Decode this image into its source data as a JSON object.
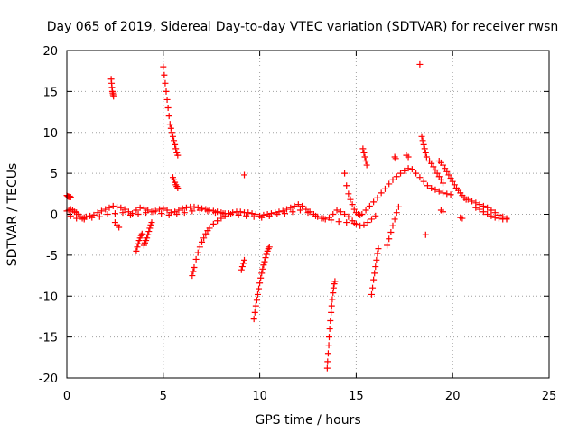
{
  "chart_data": {
    "type": "scatter",
    "title": "Day 065 of 2019, Sidereal Day-to-day VTEC variation (SDTVAR) for receiver rwsn",
    "xlabel": "GPS time / hours",
    "ylabel": "SDTVAR / TECUs",
    "xlim": [
      0,
      25
    ],
    "ylim": [
      -20,
      20
    ],
    "xticks": [
      "0",
      "5",
      "10",
      "15",
      "20",
      "25"
    ],
    "yticks": [
      "20",
      "15",
      "10",
      "5",
      "0",
      "-5",
      "-10",
      "-15",
      "-20"
    ],
    "grid": true,
    "marker": "+",
    "color": "#ff0000",
    "series": [
      {
        "name": "baseline",
        "x": [
          0.0,
          0.1,
          0.2,
          0.3,
          0.4,
          0.5,
          0.6,
          0.7,
          0.8,
          0.9,
          1.0,
          1.2,
          1.4,
          1.6,
          1.8,
          2.0,
          2.2,
          2.4,
          2.6,
          2.8,
          3.0,
          3.2,
          3.4,
          3.6,
          3.8,
          4.0,
          4.2,
          4.4,
          4.6,
          4.8,
          5.0,
          5.2,
          5.4,
          5.6,
          5.8,
          6.0,
          6.2,
          6.4,
          6.6,
          6.8,
          7.0,
          7.2,
          7.4,
          7.6,
          7.8,
          8.0,
          8.2,
          8.4,
          8.6,
          8.8,
          9.0,
          9.2,
          9.4,
          9.6,
          9.8,
          10.0,
          10.2,
          10.4,
          10.6,
          10.8,
          11.0,
          11.2,
          11.4,
          11.6,
          11.8,
          12.0,
          12.2,
          12.4,
          12.6,
          12.8,
          13.0,
          13.2,
          13.4,
          13.6,
          13.8,
          14.0,
          14.2,
          14.4,
          14.6,
          14.8,
          15.0,
          15.2,
          15.4,
          15.6,
          15.8,
          16.0
        ],
        "y": [
          0.4,
          0.5,
          0.6,
          0.5,
          0.3,
          0.2,
          0.0,
          -0.3,
          -0.5,
          -0.4,
          -0.3,
          -0.2,
          -0.1,
          0.2,
          0.4,
          0.6,
          0.8,
          1.0,
          0.9,
          0.8,
          0.6,
          0.3,
          0.1,
          0.5,
          0.8,
          0.7,
          0.5,
          0.3,
          0.4,
          0.6,
          0.7,
          0.5,
          0.2,
          0.3,
          0.5,
          0.7,
          0.8,
          0.9,
          0.9,
          0.8,
          0.7,
          0.6,
          0.5,
          0.4,
          0.3,
          0.2,
          0.1,
          0.1,
          0.2,
          0.3,
          0.3,
          0.2,
          0.2,
          0.1,
          0.0,
          -0.2,
          -0.1,
          0.0,
          0.1,
          0.2,
          0.3,
          0.4,
          0.6,
          0.8,
          1.0,
          1.2,
          1.0,
          0.6,
          0.3,
          0.0,
          -0.3,
          -0.5,
          -0.6,
          -0.4,
          0.0,
          0.5,
          0.3,
          0.0,
          -0.3,
          -0.8,
          -1.2,
          -1.4,
          -1.3,
          -1.0,
          -0.6,
          -0.2
        ]
      },
      {
        "name": "baseline-lower",
        "x": [
          0.2,
          0.5,
          0.9,
          1.3,
          1.7,
          2.1,
          2.5,
          2.9,
          3.3,
          3.7,
          4.1,
          4.5,
          4.9,
          5.3,
          5.7,
          6.1,
          6.5,
          6.9,
          7.3,
          7.7,
          8.1,
          8.5,
          8.9,
          9.3,
          9.7,
          10.1,
          10.5,
          10.9,
          11.3,
          11.7,
          12.1,
          12.5,
          12.9,
          13.3,
          13.7,
          14.1,
          14.5,
          14.9
        ],
        "y": [
          -0.2,
          -0.5,
          -0.6,
          -0.4,
          -0.3,
          0.0,
          0.1,
          0.2,
          -0.1,
          0.0,
          0.2,
          0.3,
          0.1,
          -0.1,
          0.0,
          0.2,
          0.4,
          0.5,
          0.4,
          0.2,
          0.1,
          0.0,
          -0.1,
          -0.2,
          -0.3,
          -0.4,
          -0.2,
          0.0,
          0.1,
          0.3,
          0.5,
          0.2,
          -0.2,
          -0.5,
          -0.7,
          -0.9,
          -1.0,
          -1.1
        ]
      },
      {
        "name": "arc-up-1",
        "x": [
          5.0,
          5.05,
          5.1,
          5.15,
          5.2,
          5.25,
          5.3,
          5.35,
          5.4,
          5.45,
          5.5,
          5.55,
          5.6,
          5.65,
          5.7,
          5.75
        ],
        "y": [
          18.0,
          17.0,
          16.0,
          15.0,
          14.0,
          13.0,
          12.0,
          11.0,
          10.5,
          10.0,
          9.5,
          9.0,
          8.5,
          8.0,
          7.5,
          7.2
        ]
      },
      {
        "name": "arc-up-2",
        "x": [
          5.5,
          5.55,
          5.6,
          5.65,
          5.7,
          5.75
        ],
        "y": [
          4.5,
          4.2,
          3.9,
          3.6,
          3.4,
          3.2
        ]
      },
      {
        "name": "spike-2.3",
        "x": [
          2.3,
          2.32,
          2.34,
          2.36,
          2.38,
          2.4,
          2.42
        ],
        "y": [
          16.5,
          16.0,
          15.5,
          15.0,
          14.8,
          14.6,
          14.4
        ]
      },
      {
        "name": "spike-2.6",
        "x": [
          2.5,
          2.6,
          2.7
        ],
        "y": [
          -1.0,
          -1.3,
          -1.6
        ]
      },
      {
        "name": "dip-3.7",
        "x": [
          3.6,
          3.65,
          3.7,
          3.75,
          3.8,
          3.85,
          3.9
        ],
        "y": [
          -4.5,
          -4.0,
          -3.6,
          -3.2,
          -2.9,
          -2.6,
          -2.4
        ]
      },
      {
        "name": "dip-4.1",
        "x": [
          4.0,
          4.05,
          4.1,
          4.15,
          4.2,
          4.25,
          4.3,
          4.35,
          4.4
        ],
        "y": [
          -3.8,
          -3.5,
          -3.2,
          -2.9,
          -2.5,
          -2.1,
          -1.7,
          -1.3,
          -1.0
        ]
      },
      {
        "name": "curve-6.5",
        "x": [
          6.5,
          6.55,
          6.6,
          6.7,
          6.8,
          6.9,
          7.0,
          7.1,
          7.2,
          7.3,
          7.4,
          7.6,
          7.8,
          8.0,
          8.2
        ],
        "y": [
          -7.5,
          -7.0,
          -6.5,
          -5.5,
          -4.7,
          -4.0,
          -3.4,
          -2.9,
          -2.4,
          -2.0,
          -1.7,
          -1.2,
          -0.8,
          -0.5,
          -0.2
        ]
      },
      {
        "name": "point-9.2",
        "x": [
          9.2
        ],
        "y": [
          4.8
        ]
      },
      {
        "name": "cluster-9.1",
        "x": [
          9.05,
          9.1,
          9.15,
          9.2
        ],
        "y": [
          -6.8,
          -6.4,
          -6.0,
          -5.6
        ]
      },
      {
        "name": "curve-9.8",
        "x": [
          9.7,
          9.75,
          9.8,
          9.85,
          9.9,
          9.95,
          10.0,
          10.05,
          10.1,
          10.15,
          10.2,
          10.25,
          10.3,
          10.35,
          10.4,
          10.45,
          10.5
        ],
        "y": [
          -12.8,
          -12.0,
          -11.2,
          -10.5,
          -9.8,
          -9.1,
          -8.4,
          -7.8,
          -7.2,
          -6.7,
          -6.2,
          -5.8,
          -5.3,
          -4.9,
          -4.5,
          -4.2,
          -4.0
        ]
      },
      {
        "name": "curve-13.5",
        "x": [
          13.5,
          13.52,
          13.55,
          13.58,
          13.6,
          13.63,
          13.66,
          13.7,
          13.73,
          13.76,
          13.8,
          13.83,
          13.86,
          13.9
        ],
        "y": [
          -18.8,
          -18.0,
          -17.0,
          -16.0,
          -15.0,
          -14.0,
          -13.0,
          -12.0,
          -11.2,
          -10.4,
          -9.6,
          -9.0,
          -8.5,
          -8.2
        ]
      },
      {
        "name": "rise-14.5",
        "x": [
          14.4,
          14.5,
          14.6,
          14.7,
          14.8,
          14.9,
          15.0,
          15.1,
          15.2
        ],
        "y": [
          5.0,
          3.5,
          2.5,
          1.8,
          1.2,
          0.6,
          0.2,
          0.0,
          -0.1
        ]
      },
      {
        "name": "spike-15.5",
        "x": [
          15.35,
          15.4,
          15.45,
          15.5,
          15.55
        ],
        "y": [
          8.0,
          7.5,
          7.0,
          6.5,
          6.0
        ]
      },
      {
        "name": "dip-15.8",
        "x": [
          15.8,
          15.85,
          15.9,
          15.95,
          16.0,
          16.05,
          16.1,
          16.15
        ],
        "y": [
          -9.8,
          -9.0,
          -8.0,
          -7.2,
          -6.4,
          -5.6,
          -4.8,
          -4.2
        ]
      },
      {
        "name": "dip-16.8",
        "x": [
          16.6,
          16.7,
          16.8,
          16.9,
          17.0,
          17.1,
          17.2
        ],
        "y": [
          -3.8,
          -3.0,
          -2.2,
          -1.4,
          -0.6,
          0.2,
          0.9
        ]
      },
      {
        "name": "rise-16",
        "x": [
          15.3,
          15.5,
          15.7,
          15.9,
          16.1,
          16.3,
          16.5,
          16.7,
          16.9,
          17.1,
          17.3,
          17.5,
          17.7,
          17.9,
          18.1,
          18.3,
          18.5,
          18.7,
          18.9,
          19.1,
          19.3,
          19.5,
          19.7,
          19.9
        ],
        "y": [
          0.0,
          0.5,
          1.0,
          1.5,
          2.0,
          2.6,
          3.1,
          3.7,
          4.2,
          4.6,
          5.0,
          5.3,
          5.6,
          5.5,
          5.0,
          4.5,
          4.0,
          3.5,
          3.2,
          3.0,
          2.8,
          2.6,
          2.5,
          2.4
        ]
      },
      {
        "name": "point-17",
        "x": [
          17.0,
          17.05
        ],
        "y": [
          7.0,
          6.8
        ]
      },
      {
        "name": "point-18.3",
        "x": [
          18.3
        ],
        "y": [
          18.3
        ]
      },
      {
        "name": "spike-18.5",
        "x": [
          18.4,
          18.45,
          18.5,
          18.55,
          18.6,
          18.65
        ],
        "y": [
          9.5,
          9.0,
          8.5,
          8.0,
          7.5,
          7.0
        ]
      },
      {
        "name": "point-18.6",
        "x": [
          18.6
        ],
        "y": [
          -2.5
        ]
      },
      {
        "name": "point-18",
        "x": [
          17.6,
          17.7
        ],
        "y": [
          7.2,
          7.0
        ]
      },
      {
        "name": "arc-19.5",
        "x": [
          19.3,
          19.4,
          19.5,
          19.6,
          19.7,
          19.8,
          19.9,
          20.0,
          20.1,
          20.2,
          20.3,
          20.4,
          20.5,
          20.6,
          20.7
        ],
        "y": [
          6.5,
          6.3,
          6.0,
          5.6,
          5.2,
          4.8,
          4.4,
          4.0,
          3.6,
          3.2,
          2.9,
          2.6,
          2.3,
          2.0,
          1.8
        ]
      },
      {
        "name": "arc-19.8",
        "x": [
          18.8,
          18.9,
          19.0,
          19.1,
          19.2,
          19.3,
          19.4,
          19.5
        ],
        "y": [
          6.5,
          6.2,
          5.8,
          5.4,
          5.0,
          4.6,
          4.2,
          3.8
        ]
      },
      {
        "name": "point-19.5",
        "x": [
          19.4,
          19.5
        ],
        "y": [
          0.5,
          0.3
        ]
      },
      {
        "name": "point-20.5",
        "x": [
          20.4,
          20.5
        ],
        "y": [
          -0.4,
          -0.5
        ]
      },
      {
        "name": "tail-21",
        "x": [
          20.6,
          20.8,
          21.0,
          21.2,
          21.4,
          21.6,
          21.8,
          22.0,
          22.2,
          22.4,
          22.6,
          22.8
        ],
        "y": [
          2.0,
          1.8,
          1.6,
          1.4,
          1.2,
          1.0,
          0.8,
          0.5,
          0.2,
          -0.1,
          -0.3,
          -0.5
        ]
      },
      {
        "name": "tail-22",
        "x": [
          21.2,
          21.4,
          21.6,
          21.8,
          22.0,
          22.2,
          22.4,
          22.6,
          22.8
        ],
        "y": [
          0.8,
          0.6,
          0.3,
          0.0,
          -0.2,
          -0.4,
          -0.5,
          -0.6,
          -0.6
        ]
      },
      {
        "name": "start-points",
        "x": [
          0.0,
          0.05,
          0.1,
          0.15,
          0.2
        ],
        "y": [
          2.3,
          2.2,
          2.1,
          2.2,
          2.1
        ]
      }
    ]
  }
}
